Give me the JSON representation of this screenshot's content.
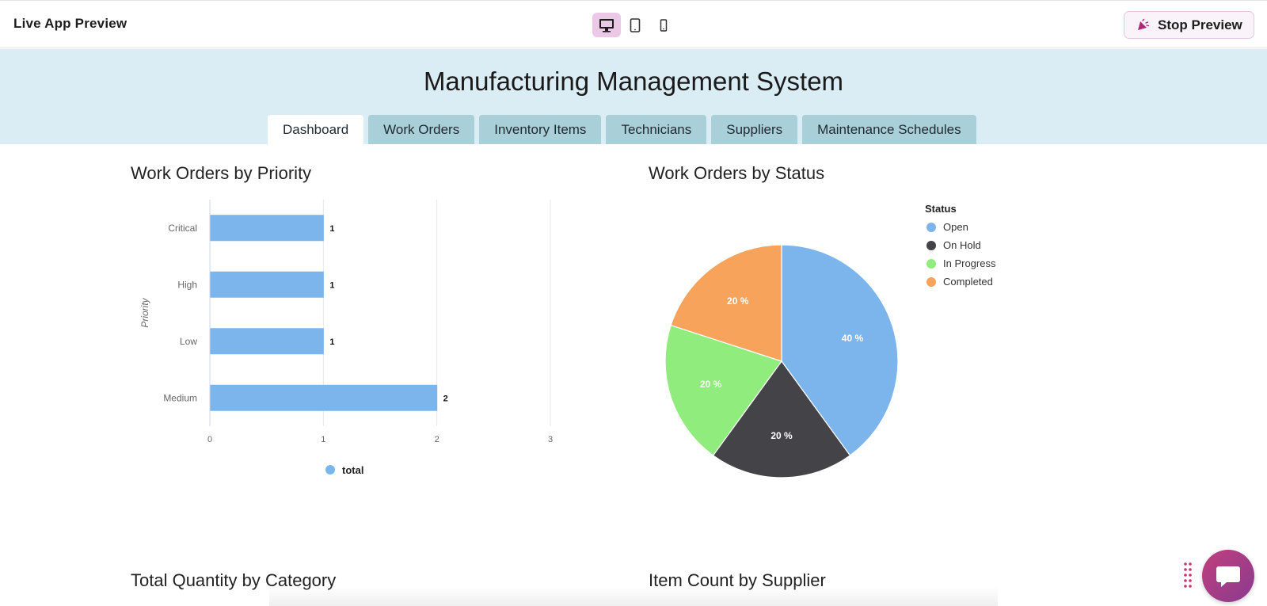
{
  "topbar": {
    "title": "Live App Preview",
    "devices": [
      "desktop-icon",
      "tablet-icon",
      "mobile-icon"
    ],
    "stop_label": "Stop Preview"
  },
  "app": {
    "title": "Manufacturing Management System",
    "tabs": [
      "Dashboard",
      "Work Orders",
      "Inventory Items",
      "Technicians",
      "Suppliers",
      "Maintenance Schedules"
    ],
    "active_tab": "Dashboard"
  },
  "sections": {
    "priority_title": "Work Orders by Priority",
    "status_title": "Work Orders by Status",
    "category_title": "Total Quantity by Category",
    "supplier_title": "Item Count by Supplier"
  },
  "colors": {
    "accent": "#ebc8e6",
    "header_bg": "#dbedf4",
    "tab_bg": "#a9cfd9",
    "bar": "#7cb5ec"
  },
  "chart_data": [
    {
      "type": "bar",
      "orientation": "horizontal",
      "title": "Work Orders by Priority",
      "ylabel": "Priority",
      "xlabel": "",
      "categories": [
        "Critical",
        "High",
        "Low",
        "Medium"
      ],
      "series": [
        {
          "name": "total",
          "values": [
            1,
            1,
            1,
            2
          ],
          "color": "#7cb5ec"
        }
      ],
      "xlim": [
        0,
        3
      ],
      "xticks": [
        "0",
        "1",
        "2",
        "3"
      ],
      "grid": true,
      "legend": "bottom"
    },
    {
      "type": "pie",
      "title": "Work Orders by Status",
      "legend_title": "Status",
      "labels": [
        "Open",
        "On Hold",
        "In Progress",
        "Completed"
      ],
      "values": [
        40,
        20,
        20,
        20
      ],
      "value_labels": [
        "40 %",
        "20 %",
        "20 %",
        "20 %"
      ],
      "colors": [
        "#7cb5ec",
        "#434348",
        "#90ed7d",
        "#f7a35c"
      ],
      "legend": "top-right"
    }
  ]
}
